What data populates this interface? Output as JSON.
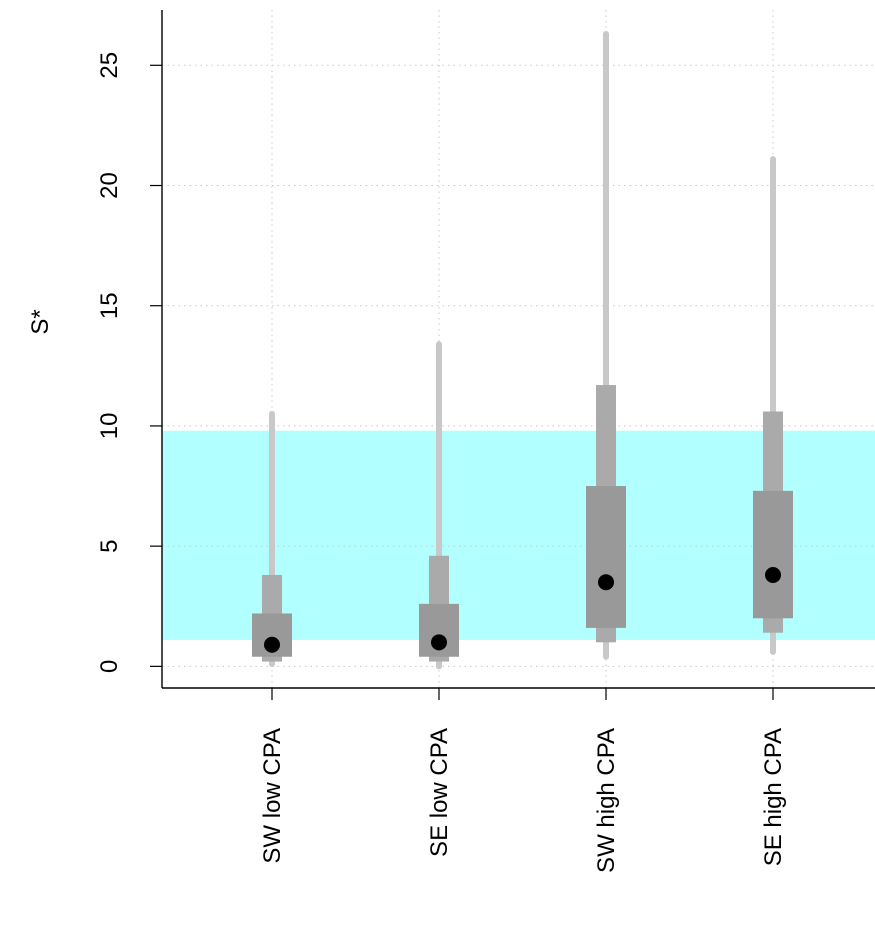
{
  "chart_data": {
    "type": "interval",
    "title": "",
    "ylabel": "S*",
    "xlabel": "",
    "ylim": [
      -0.9,
      27.3
    ],
    "yticks": [
      0,
      5,
      10,
      15,
      20,
      25
    ],
    "grid": "dotted",
    "band": {
      "from": 1.1,
      "to": 9.8,
      "color": "#b2ffff"
    },
    "colors": {
      "outer": "#c8c8c8",
      "middle": "#aaaaaa",
      "inner": "#999999",
      "point": "#000000"
    },
    "categories": [
      "SW low CPA",
      "SE low CPA",
      "SW high CPA",
      "SE high CPA"
    ],
    "series": [
      {
        "outer": [
          0.1,
          10.5
        ],
        "middle": [
          0.2,
          3.8
        ],
        "inner": [
          0.4,
          2.2
        ],
        "median": 0.9
      },
      {
        "outer": [
          0.0,
          13.4
        ],
        "middle": [
          0.2,
          4.6
        ],
        "inner": [
          0.4,
          2.6
        ],
        "median": 1.0
      },
      {
        "outer": [
          0.4,
          26.3
        ],
        "middle": [
          1.0,
          11.7
        ],
        "inner": [
          1.6,
          7.5
        ],
        "median": 3.5
      },
      {
        "outer": [
          0.6,
          21.1
        ],
        "middle": [
          1.4,
          10.6
        ],
        "inner": [
          2.0,
          7.3
        ],
        "median": 3.8
      }
    ]
  }
}
